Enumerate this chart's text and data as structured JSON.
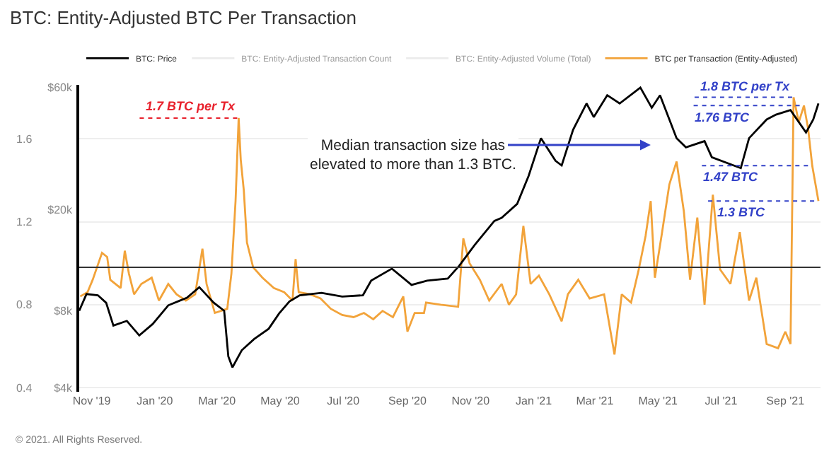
{
  "chart_data": {
    "type": "line",
    "title": "BTC: Entity-Adjusted BTC Per Transaction",
    "annotations": [
      {
        "text": "1.7 BTC per Tx",
        "x": "2020-03-22",
        "y": 1.7
      },
      {
        "text": "1.8 BTC per Tx",
        "x": "2021-09-09",
        "y": 1.8
      },
      {
        "text": "1.76 BTC",
        "x": "2021-09-19",
        "y": 1.76
      },
      {
        "text": "1.47 BTC",
        "x": "2021-09-27",
        "y": 1.47
      },
      {
        "text": "1.3 BTC",
        "x": "2021-10-03",
        "y": 1.3
      },
      "Median transaction size has elevated to more than 1.3 BTC.",
      "© 2021. All Rights Reserved."
    ],
    "xlim": [
      "2019-10-20",
      "2021-10-05"
    ],
    "xticks": [
      {
        "value": "2019-11-01",
        "label": "Nov '19"
      },
      {
        "value": "2020-01-01",
        "label": "Jan '20"
      },
      {
        "value": "2020-03-01",
        "label": "Mar '20"
      },
      {
        "value": "2020-05-01",
        "label": "May '20"
      },
      {
        "value": "2020-07-01",
        "label": "Jul '20"
      },
      {
        "value": "2020-09-01",
        "label": "Sep '20"
      },
      {
        "value": "2020-11-01",
        "label": "Nov '20"
      },
      {
        "value": "2021-01-01",
        "label": "Jan '21"
      },
      {
        "value": "2021-03-01",
        "label": "Mar '21"
      },
      {
        "value": "2021-05-01",
        "label": "May '21"
      },
      {
        "value": "2021-07-01",
        "label": "Jul '21"
      },
      {
        "value": "2021-09-01",
        "label": "Sep '21"
      }
    ],
    "ylim": [
      0.38,
      1.86
    ],
    "yticks": [
      0.4,
      0.8,
      1.2,
      1.6
    ],
    "y2lim": [
      3850,
      61500
    ],
    "y2ticks": [
      {
        "value": 4000,
        "label": "$4k"
      },
      {
        "value": 8000,
        "label": "$8k"
      },
      {
        "value": 20000,
        "label": "$20k"
      },
      {
        "value": 60000,
        "label": "$60k"
      }
    ],
    "log": "y2",
    "grid": "y",
    "legend": "top left",
    "marker": "none",
    "line_style": "solid",
    "ref_lines": [
      {
        "axis": "y",
        "value": 0.98,
        "label": null,
        "color": "#333333"
      }
    ],
    "series": [
      {
        "name": "BTC: Price",
        "color": "#000000",
        "axis": "y2",
        "x": [
          "2019-10-20",
          "2019-10-27",
          "2019-11-07",
          "2019-11-15",
          "2019-11-22",
          "2019-12-05",
          "2019-12-17",
          "2019-12-30",
          "2020-01-14",
          "2020-02-01",
          "2020-02-13",
          "2020-02-27",
          "2020-03-08",
          "2020-03-12",
          "2020-03-16",
          "2020-03-25",
          "2020-04-06",
          "2020-04-20",
          "2020-04-30",
          "2020-05-10",
          "2020-05-20",
          "2020-06-10",
          "2020-06-30",
          "2020-07-20",
          "2020-07-28",
          "2020-08-17",
          "2020-09-05",
          "2020-09-20",
          "2020-10-10",
          "2020-10-21",
          "2020-11-05",
          "2020-11-24",
          "2020-12-01",
          "2020-12-16",
          "2020-12-27",
          "2021-01-08",
          "2021-01-22",
          "2021-01-28",
          "2021-02-08",
          "2021-02-21",
          "2021-02-28",
          "2021-03-13",
          "2021-03-25",
          "2021-04-14",
          "2021-04-25",
          "2021-05-03",
          "2021-05-19",
          "2021-05-28",
          "2021-06-15",
          "2021-06-22",
          "2021-07-20",
          "2021-07-28",
          "2021-08-14",
          "2021-08-23",
          "2021-09-06",
          "2021-09-21",
          "2021-09-28",
          "2021-10-03"
        ],
        "values": [
          8000,
          9300,
          9200,
          8600,
          7000,
          7300,
          6400,
          7100,
          8400,
          9000,
          9900,
          8600,
          8000,
          5300,
          4800,
          5600,
          6200,
          6800,
          7800,
          8700,
          9200,
          9400,
          9100,
          9200,
          10500,
          11700,
          10100,
          10500,
          10700,
          12000,
          14500,
          18000,
          18500,
          21000,
          27000,
          38000,
          31000,
          29700,
          41000,
          52000,
          46000,
          56000,
          52000,
          60000,
          50000,
          56000,
          38000,
          35000,
          37000,
          32000,
          29000,
          38000,
          45000,
          47000,
          49000,
          40000,
          45000,
          52000
        ]
      },
      {
        "name": "BTC: Entity-Adjusted Transaction Count",
        "color": "#d9d9d9"
      },
      {
        "name": "BTC: Entity-Adjusted Volume (Total)",
        "color": "#d9d9d9"
      },
      {
        "name": "BTC per Transaction (Entity-Adjusted)",
        "color": "#f2a33a",
        "axis": "y",
        "x": [
          "2019-10-21",
          "2019-10-28",
          "2019-11-02",
          "2019-11-11",
          "2019-11-16",
          "2019-11-19",
          "2019-11-29",
          "2019-12-03",
          "2019-12-07",
          "2019-12-12",
          "2019-12-19",
          "2019-12-29",
          "2020-01-05",
          "2020-01-14",
          "2020-01-22",
          "2020-01-31",
          "2020-02-09",
          "2020-02-16",
          "2020-02-20",
          "2020-02-28",
          "2020-03-11",
          "2020-03-15",
          "2020-03-19",
          "2020-03-22",
          "2020-03-24",
          "2020-03-27",
          "2020-03-30",
          "2020-04-05",
          "2020-04-14",
          "2020-04-25",
          "2020-05-05",
          "2020-05-13",
          "2020-05-16",
          "2020-05-19",
          "2020-05-30",
          "2020-06-09",
          "2020-06-19",
          "2020-06-30",
          "2020-07-11",
          "2020-07-21",
          "2020-07-30",
          "2020-08-08",
          "2020-08-18",
          "2020-08-28",
          "2020-09-01",
          "2020-09-08",
          "2020-09-17",
          "2020-09-19",
          "2020-10-03",
          "2020-10-20",
          "2020-10-25",
          "2020-10-31",
          "2020-11-10",
          "2020-11-19",
          "2020-12-01",
          "2020-12-08",
          "2020-12-15",
          "2020-12-22",
          "2020-12-29",
          "2021-01-06",
          "2021-01-16",
          "2021-01-28",
          "2021-02-03",
          "2021-02-13",
          "2021-02-24",
          "2021-03-10",
          "2021-03-20",
          "2021-03-27",
          "2021-04-05",
          "2021-04-12",
          "2021-04-19",
          "2021-04-24",
          "2021-04-28",
          "2021-05-05",
          "2021-05-12",
          "2021-05-19",
          "2021-05-26",
          "2021-06-01",
          "2021-06-08",
          "2021-06-15",
          "2021-06-23",
          "2021-06-30",
          "2021-07-10",
          "2021-07-19",
          "2021-07-28",
          "2021-08-04",
          "2021-08-14",
          "2021-08-25",
          "2021-09-01",
          "2021-09-06",
          "2021-09-09",
          "2021-09-14",
          "2021-09-19",
          "2021-09-23",
          "2021-09-27",
          "2021-10-03"
        ],
        "values": [
          0.84,
          0.86,
          0.92,
          1.05,
          1.03,
          0.92,
          0.88,
          1.06,
          0.95,
          0.85,
          0.9,
          0.93,
          0.82,
          0.9,
          0.85,
          0.82,
          0.85,
          1.07,
          0.9,
          0.76,
          0.78,
          0.95,
          1.3,
          1.7,
          1.5,
          1.35,
          1.1,
          0.98,
          0.93,
          0.88,
          0.86,
          0.82,
          1.02,
          0.86,
          0.85,
          0.83,
          0.78,
          0.75,
          0.74,
          0.76,
          0.73,
          0.77,
          0.74,
          0.84,
          0.67,
          0.76,
          0.76,
          0.81,
          0.8,
          0.79,
          1.12,
          1.0,
          0.92,
          0.82,
          0.9,
          0.8,
          0.85,
          1.18,
          0.9,
          0.94,
          0.85,
          0.72,
          0.85,
          0.92,
          0.83,
          0.85,
          0.56,
          0.85,
          0.81,
          0.96,
          1.13,
          1.3,
          0.93,
          1.15,
          1.38,
          1.49,
          1.25,
          0.92,
          1.22,
          0.8,
          1.33,
          0.97,
          0.9,
          1.15,
          0.82,
          0.93,
          0.61,
          0.59,
          0.67,
          0.61,
          1.8,
          1.68,
          1.76,
          1.65,
          1.47,
          1.3
        ]
      }
    ]
  }
}
